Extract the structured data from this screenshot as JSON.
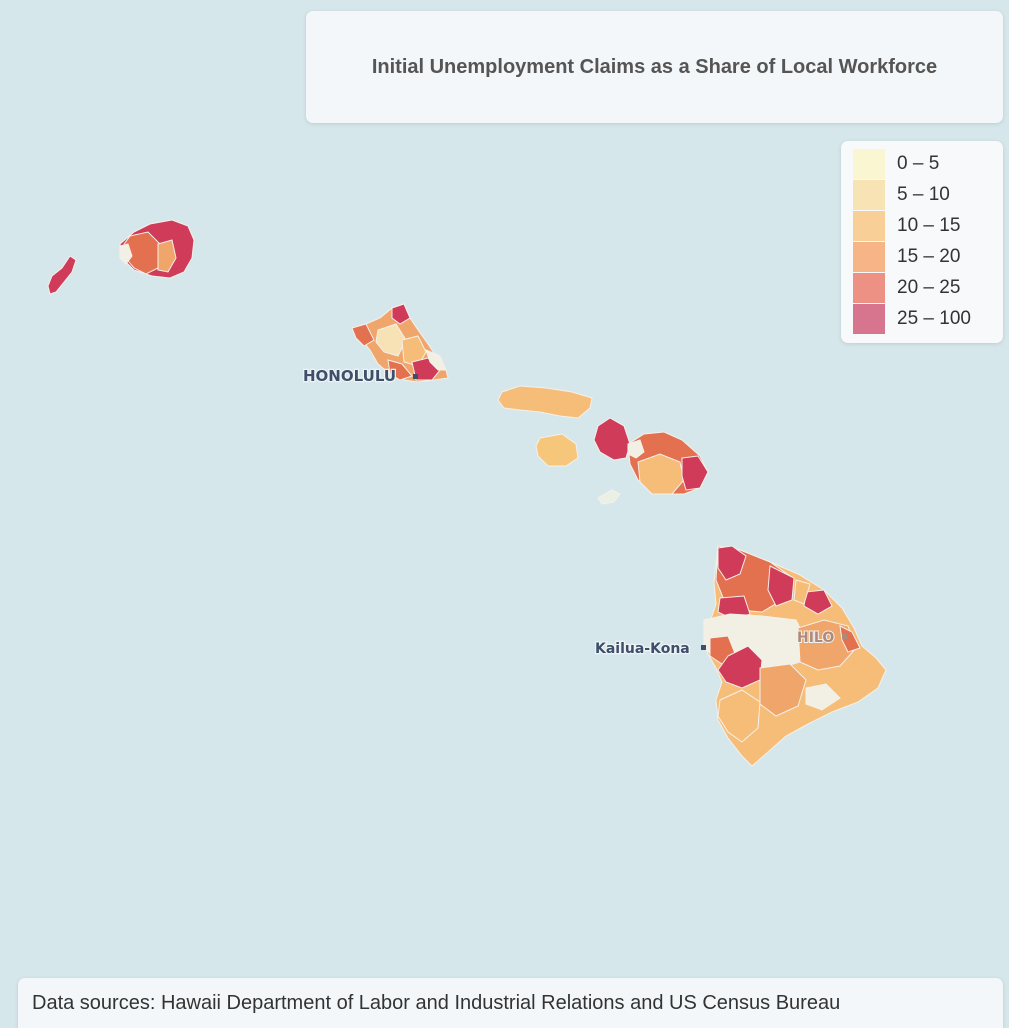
{
  "title": "Initial Unemployment Claims as a Share of Local Workforce",
  "legend": {
    "items": [
      {
        "label": "0 – 5",
        "color": "#fbf6d2"
      },
      {
        "label": "5 – 10",
        "color": "#f8e3b4"
      },
      {
        "label": "10 – 15",
        "color": "#f9cf98"
      },
      {
        "label": "15 – 20",
        "color": "#f6b487"
      },
      {
        "label": "20 – 25",
        "color": "#ee9185"
      },
      {
        "label": "25 – 100",
        "color": "#d6758d"
      }
    ]
  },
  "cities": {
    "honolulu": "HONOLULU",
    "kailua_kona": "Kailua-Kona",
    "hilo": "HILO"
  },
  "source": "Data sources: Hawaii Department of Labor and Industrial Relations and US Census Bureau",
  "colors": {
    "ocean": "#d6e7eb",
    "very_high": "#cf3b58",
    "high": "#e3704f",
    "medium_high": "#f0a56a",
    "medium": "#f6bd78",
    "low": "#f7e2b6",
    "very_low": "#f2efe4"
  }
}
